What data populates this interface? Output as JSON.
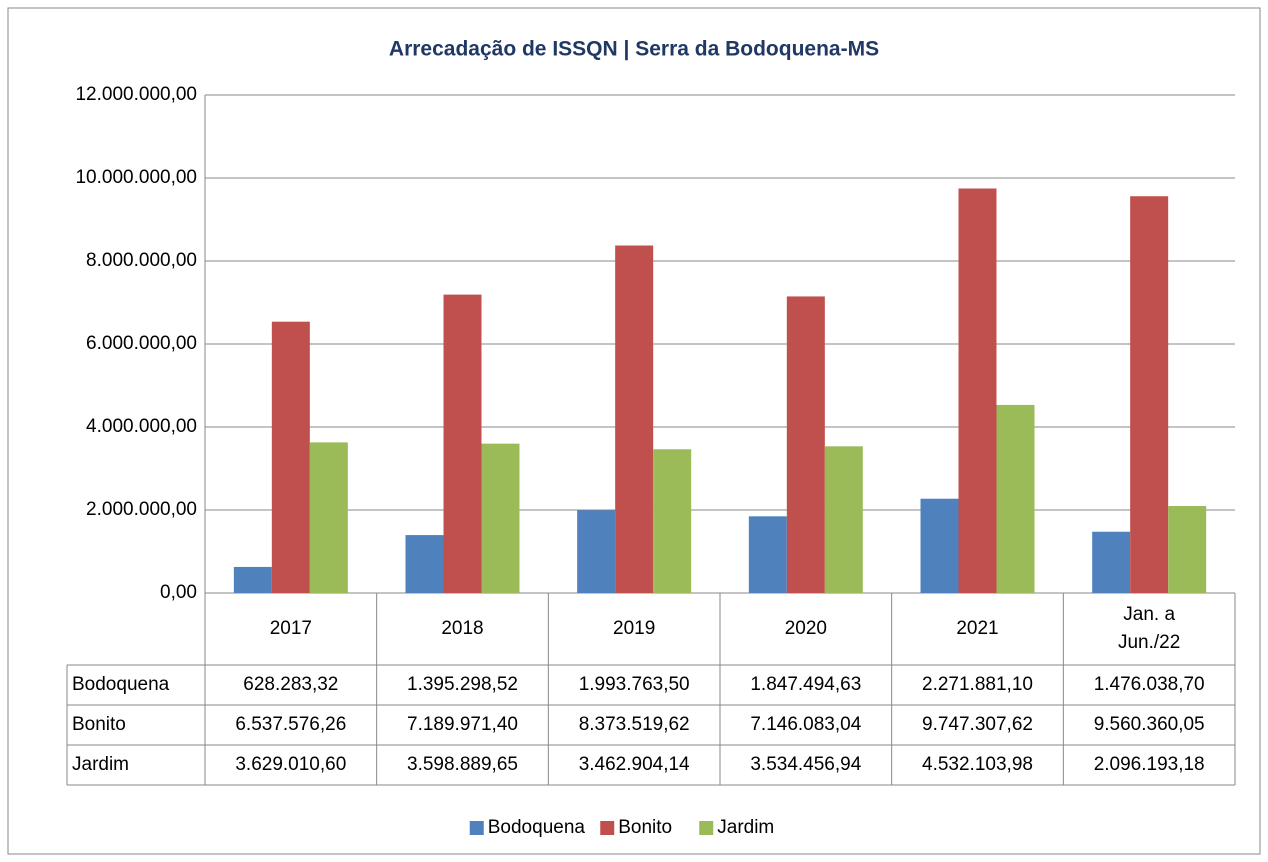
{
  "chart_data": {
    "type": "bar",
    "title": "Arrecadação de ISSQN | Serra da Bodoquena-MS",
    "categories": [
      "2017",
      "2018",
      "2019",
      "2020",
      "2021",
      "Jan. a Jun./22"
    ],
    "series": [
      {
        "name": "Bodoquena",
        "color": "#4f81bd",
        "values": [
          628283.32,
          1395298.52,
          1993763.5,
          1847494.63,
          2271881.1,
          1476038.7
        ],
        "value_labels": [
          "628.283,32",
          "1.395.298,52",
          "1.993.763,50",
          "1.847.494,63",
          "2.271.881,10",
          "1.476.038,70"
        ]
      },
      {
        "name": "Bonito",
        "color": "#c0504d",
        "values": [
          6537576.26,
          7189971.4,
          8373519.62,
          7146083.04,
          9747307.62,
          9560360.05
        ],
        "value_labels": [
          "6.537.576,26",
          "7.189.971,40",
          "8.373.519,62",
          "7.146.083,04",
          "9.747.307,62",
          "9.560.360,05"
        ]
      },
      {
        "name": "Jardim",
        "color": "#9bbb59",
        "values": [
          3629010.6,
          3598889.65,
          3462904.14,
          3534456.94,
          4532103.98,
          2096193.18
        ],
        "value_labels": [
          "3.629.010,60",
          "3.598.889,65",
          "3.462.904,14",
          "3.534.456,94",
          "4.532.103,98",
          "2.096.193,18"
        ]
      }
    ],
    "ylim": [
      0,
      12000000
    ],
    "yticks": [
      {
        "value": 0,
        "label": "0,00"
      },
      {
        "value": 2000000,
        "label": "2.000.000,00"
      },
      {
        "value": 4000000,
        "label": "4.000.000,00"
      },
      {
        "value": 6000000,
        "label": "6.000.000,00"
      },
      {
        "value": 8000000,
        "label": "8.000.000,00"
      },
      {
        "value": 10000000,
        "label": "10.000.000,00"
      },
      {
        "value": 12000000,
        "label": "12.000.000,00"
      }
    ],
    "grid": true,
    "legend": "bottom"
  }
}
